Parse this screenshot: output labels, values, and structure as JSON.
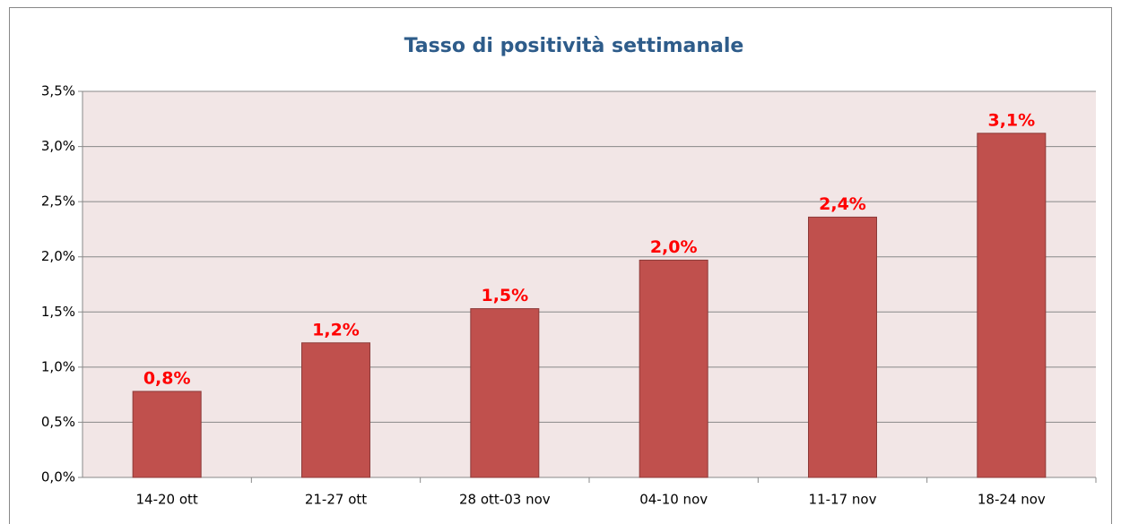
{
  "chart_data": {
    "type": "bar",
    "title": "Tasso di positività settimanale",
    "categories": [
      "14-20 ott",
      "21-27 ott",
      "28 ott-03 nov",
      "04-10 nov",
      "11-17 nov",
      "18-24 nov"
    ],
    "values": [
      0.78,
      1.22,
      1.53,
      1.97,
      2.36,
      3.12
    ],
    "value_labels": [
      "0,8%",
      "1,2%",
      "1,5%",
      "2,0%",
      "2,4%",
      "3,1%"
    ],
    "color": "#c0504d",
    "ylim": [
      0,
      3.5
    ],
    "yticks": [
      {
        "value": 0,
        "label": "0,0%"
      },
      {
        "value": 0.5,
        "label": "0,5%"
      },
      {
        "value": 1,
        "label": "1,0%"
      },
      {
        "value": 1.5,
        "label": "1,5%"
      },
      {
        "value": 2,
        "label": "2,0%"
      },
      {
        "value": 2.5,
        "label": "2,5%"
      },
      {
        "value": 3,
        "label": "3,0%"
      },
      {
        "value": 3.5,
        "label": "3,5%"
      }
    ],
    "grid": true
  }
}
